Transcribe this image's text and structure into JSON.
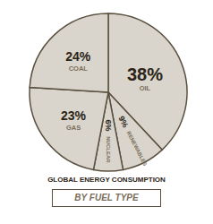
{
  "chart_data": {
    "type": "pie",
    "title": "GLOBAL ENERGY CONSUMPTION",
    "subtitle": "BY FUEL TYPE",
    "categories": [
      "OIL",
      "RENEWABLES",
      "NUCLEAR",
      "GAS",
      "COAL"
    ],
    "values": [
      38,
      9,
      6,
      23,
      24
    ],
    "value_labels": [
      "38%",
      "9%",
      "6%",
      "23%",
      "24%"
    ],
    "color": "#d9d5cc",
    "data_labels": true
  }
}
